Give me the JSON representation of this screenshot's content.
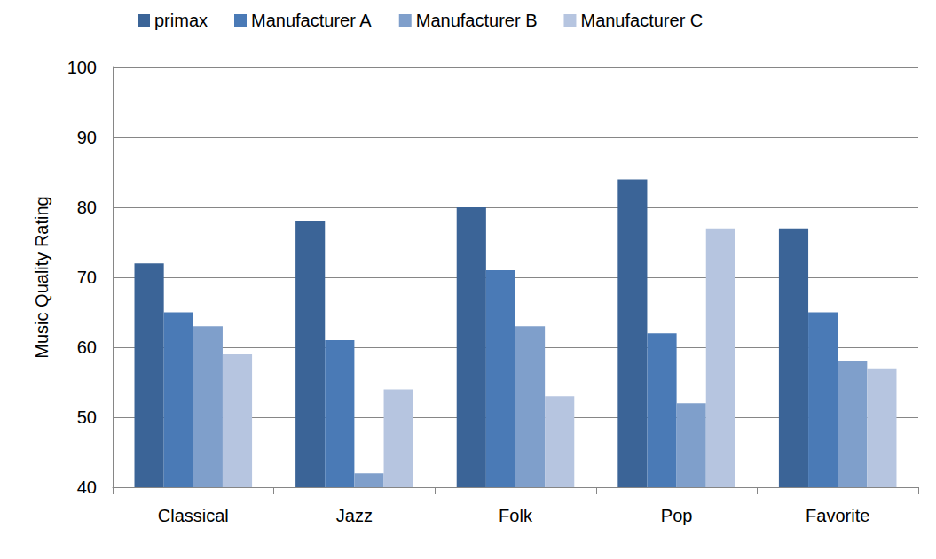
{
  "chart_data": {
    "type": "bar",
    "y_label": "Music Quality Rating",
    "categories": [
      "Classical",
      "Jazz",
      "Folk",
      "Pop",
      "Favorite"
    ],
    "series": [
      {
        "name": "primax",
        "color": "#3b6497",
        "values": [
          72,
          78,
          80,
          84,
          77
        ]
      },
      {
        "name": "Manufacturer A",
        "color": "#4a7ab6",
        "values": [
          65,
          61,
          71,
          62,
          65
        ]
      },
      {
        "name": "Manufacturer B",
        "color": "#7f9fcb",
        "values": [
          63,
          42,
          63,
          52,
          58
        ]
      },
      {
        "name": "Manufacturer C",
        "color": "#b6c5e0",
        "values": [
          59,
          54,
          53,
          77,
          57
        ]
      }
    ],
    "ylim": [
      40,
      100
    ],
    "yticks": [
      40,
      50,
      60,
      70,
      80,
      90,
      100
    ],
    "grid": true,
    "legend": "top"
  }
}
